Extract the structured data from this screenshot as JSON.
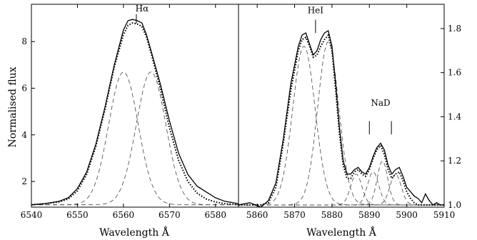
{
  "chart_data": [
    {
      "type": "line",
      "panel": "left",
      "xlabel": "Wavelength Å",
      "ylabel": "Normalised flux",
      "xlim": [
        6540,
        6585
      ],
      "ylim": [
        0.9,
        9.6
      ],
      "xticks": [
        6540,
        6550,
        6560,
        6570,
        6580
      ],
      "yticks": [
        2,
        4,
        6,
        8
      ],
      "annotations": [
        {
          "text": "Hα",
          "x": 6562.8
        }
      ],
      "x": [
        6540,
        6543,
        6546,
        6548,
        6550,
        6552,
        6554,
        6556,
        6558,
        6560,
        6561,
        6562,
        6563,
        6564,
        6565,
        6566,
        6568,
        6570,
        6572,
        6574,
        6576,
        6578,
        6580,
        6582,
        6585
      ],
      "series": [
        {
          "style": "solid",
          "values": [
            1.0,
            1.05,
            1.15,
            1.3,
            1.7,
            2.4,
            3.6,
            5.2,
            7.0,
            8.5,
            8.9,
            8.95,
            8.9,
            8.8,
            8.3,
            7.6,
            6.2,
            4.6,
            3.2,
            2.3,
            1.8,
            1.55,
            1.3,
            1.15,
            1.05
          ]
        },
        {
          "style": "dotted",
          "values": [
            1.0,
            1.05,
            1.12,
            1.25,
            1.6,
            2.3,
            3.5,
            5.1,
            6.9,
            8.3,
            8.7,
            8.8,
            8.75,
            8.65,
            8.2,
            7.5,
            6.0,
            4.3,
            2.9,
            2.0,
            1.5,
            1.25,
            1.12,
            1.05,
            1.0
          ]
        }
      ],
      "components": [
        {
          "style": "dashed",
          "center": 6560.0,
          "amplitude": 5.7,
          "sigma": 3.2
        },
        {
          "style": "dashed",
          "center": 6566.0,
          "amplitude": 5.7,
          "sigma": 3.2
        }
      ],
      "baseline": 1.0
    },
    {
      "type": "line",
      "panel": "right",
      "xlabel": "Wavelength Å",
      "ylabel": "",
      "xlim": [
        5855,
        5910
      ],
      "ylim": [
        0.99,
        1.91
      ],
      "xticks": [
        5860,
        5870,
        5880,
        5890,
        5900,
        5910
      ],
      "yticks": [
        1.0,
        1.2,
        1.4,
        1.6,
        1.8
      ],
      "annotations": [
        {
          "text": "HeI",
          "x": 5875.6
        },
        {
          "text": "NaD",
          "x": 5893.0,
          "markers": [
            5890.0,
            5895.9
          ]
        }
      ],
      "x": [
        5855,
        5858,
        5861,
        5863,
        5865,
        5867,
        5869,
        5871,
        5872,
        5873,
        5874,
        5875,
        5876,
        5877,
        5878,
        5879,
        5880,
        5881,
        5882,
        5883,
        5884,
        5885,
        5886,
        5887,
        5888,
        5889,
        5890,
        5891,
        5892,
        5893,
        5894,
        5895,
        5896,
        5897,
        5898,
        5899,
        5900,
        5901,
        5902,
        5903,
        5904,
        5905,
        5906,
        5907,
        5908,
        5909,
        5910
      ],
      "series": [
        {
          "style": "solid",
          "values": [
            1.0,
            1.01,
            0.99,
            1.02,
            1.1,
            1.3,
            1.55,
            1.72,
            1.77,
            1.78,
            1.73,
            1.68,
            1.7,
            1.75,
            1.78,
            1.79,
            1.72,
            1.55,
            1.35,
            1.2,
            1.14,
            1.14,
            1.16,
            1.17,
            1.15,
            1.14,
            1.17,
            1.22,
            1.26,
            1.28,
            1.25,
            1.18,
            1.14,
            1.16,
            1.17,
            1.13,
            1.08,
            1.06,
            1.04,
            1.03,
            1.01,
            1.05,
            1.02,
            1.0,
            1.01,
            1.0,
            1.0
          ]
        },
        {
          "style": "dotted",
          "values": [
            1.0,
            1.0,
            1.0,
            1.01,
            1.08,
            1.28,
            1.52,
            1.7,
            1.75,
            1.76,
            1.72,
            1.67,
            1.68,
            1.72,
            1.75,
            1.77,
            1.7,
            1.52,
            1.32,
            1.18,
            1.12,
            1.12,
            1.15,
            1.16,
            1.14,
            1.13,
            1.16,
            1.21,
            1.25,
            1.27,
            1.23,
            1.16,
            1.12,
            1.14,
            1.15,
            1.11,
            1.06,
            1.03,
            1.01,
            1.0,
            1.0,
            1.0,
            1.0,
            1.0,
            1.0,
            1.0,
            1.0
          ]
        }
      ],
      "components": [
        {
          "style": "dashed",
          "center": 5872.5,
          "amplitude": 0.72,
          "sigma": 3.0
        },
        {
          "style": "dashed",
          "center": 5879.0,
          "amplitude": 0.74,
          "sigma": 2.8
        },
        {
          "style": "dashed",
          "center": 5886.5,
          "amplitude": 0.14,
          "sigma": 1.5
        },
        {
          "style": "dashed",
          "center": 5891.0,
          "amplitude": 0.15,
          "sigma": 1.5
        },
        {
          "style": "dashed",
          "center": 5893.5,
          "amplitude": 0.2,
          "sigma": 1.4
        },
        {
          "style": "dashed",
          "center": 5897.0,
          "amplitude": 0.14,
          "sigma": 1.5
        }
      ],
      "baseline": 1.0
    }
  ]
}
